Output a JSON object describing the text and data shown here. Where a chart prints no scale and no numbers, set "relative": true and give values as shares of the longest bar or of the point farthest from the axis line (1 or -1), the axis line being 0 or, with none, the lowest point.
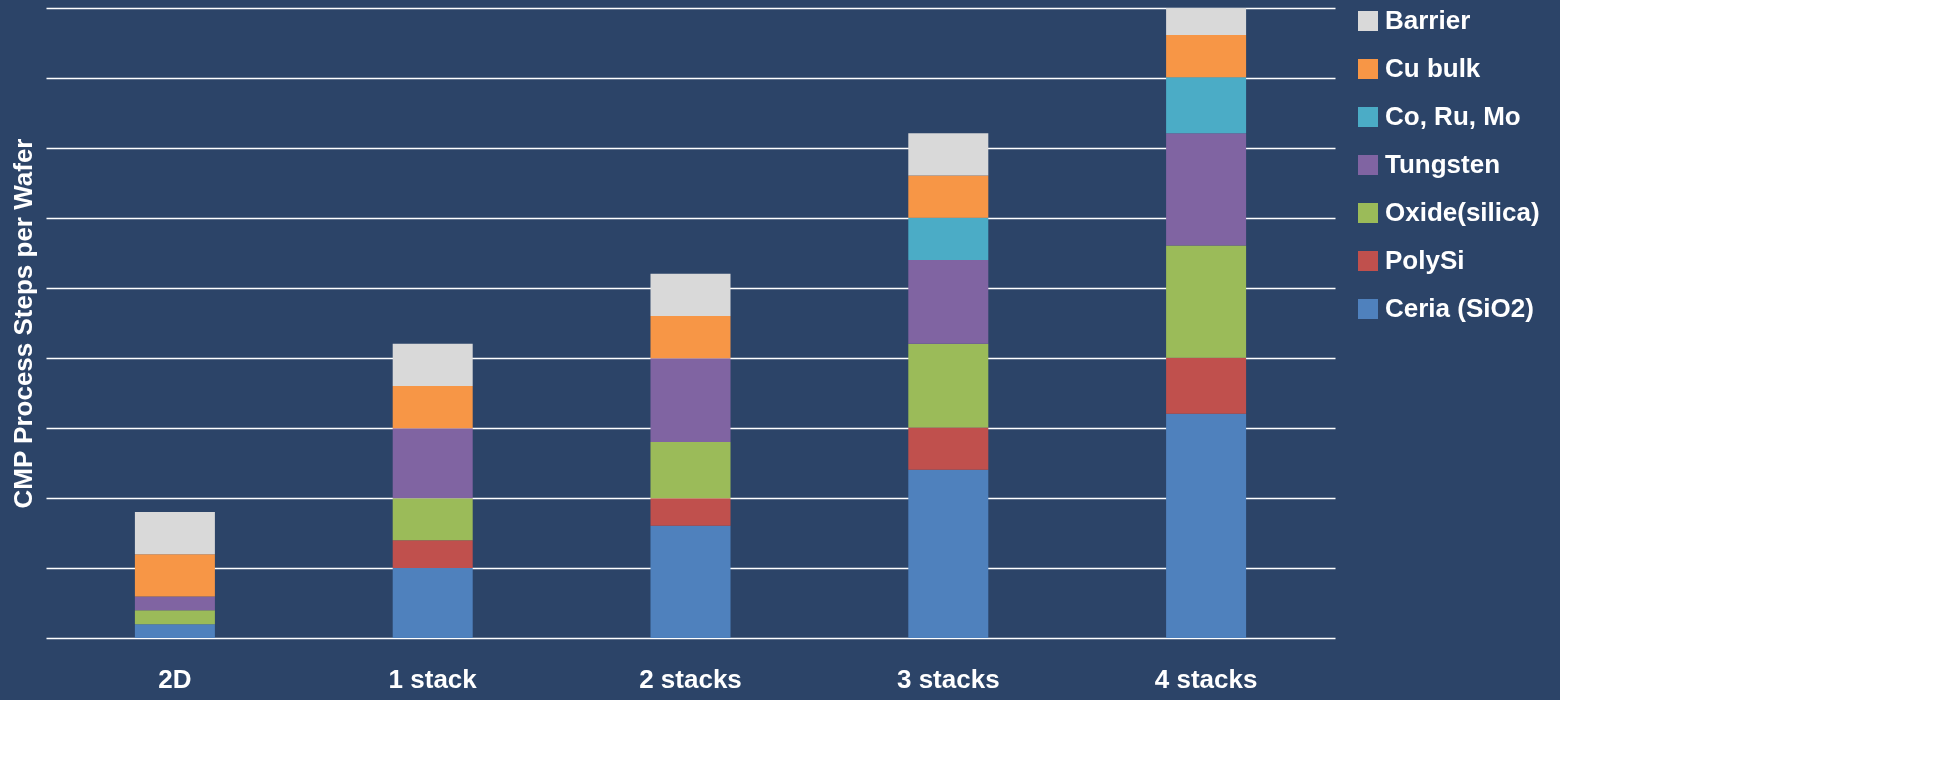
{
  "chart_data": {
    "type": "bar",
    "stacked": true,
    "relative": true,
    "ylabel": "CMP Process Steps per Wafer",
    "categories": [
      "2D",
      "1 stack",
      "2 stacks",
      "3 stacks",
      "4 stacks"
    ],
    "series": [
      {
        "name": "Ceria (SiO2)",
        "color": "#4f81bd",
        "values": [
          0.022,
          0.111,
          0.178,
          0.267,
          0.356
        ]
      },
      {
        "name": "PolySi",
        "color": "#c0504d",
        "values": [
          0,
          0.044,
          0.044,
          0.067,
          0.089
        ]
      },
      {
        "name": "Oxide(silica)",
        "color": "#9bbb59",
        "values": [
          0.022,
          0.067,
          0.089,
          0.133,
          0.178
        ]
      },
      {
        "name": "Tungsten",
        "color": "#8064a2",
        "values": [
          0.022,
          0.111,
          0.133,
          0.133,
          0.178
        ]
      },
      {
        "name": "Co, Ru, Mo",
        "color": "#4bacc6",
        "values": [
          0,
          0,
          0,
          0.067,
          0.089
        ]
      },
      {
        "name": "Cu bulk",
        "color": "#f79646",
        "values": [
          0.067,
          0.067,
          0.067,
          0.067,
          0.067
        ]
      },
      {
        "name": "Barrier",
        "color": "#d9d9d9",
        "values": [
          0.067,
          0.067,
          0.067,
          0.067,
          0.043
        ]
      }
    ],
    "grid": "y",
    "legend": "right"
  }
}
